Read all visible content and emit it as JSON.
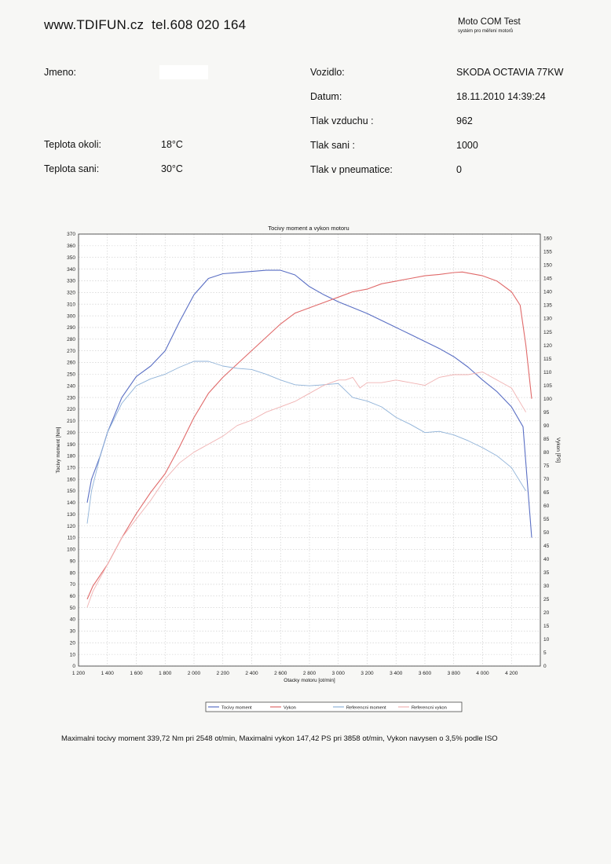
{
  "header": {
    "site": "www.TDIFUN.cz",
    "phone": "tel.608 020 164",
    "brand": "Moto COM Test",
    "brand_sub": "systém pro měření motorů"
  },
  "info": {
    "left": [
      {
        "label": "Jmeno:",
        "value": ""
      },
      {
        "label": "Teplota okoli:",
        "value": "18°C"
      },
      {
        "label": "Teplota sani:",
        "value": "30°C"
      }
    ],
    "right": [
      {
        "label": "Vozidlo:",
        "value": "SKODA OCTAVIA 77KW"
      },
      {
        "label": "Datum:",
        "value": "18.11.2010 14:39:24"
      },
      {
        "label": "Tlak vzduchu :",
        "value": "962"
      },
      {
        "label": "Tlak sani :",
        "value": "1000"
      },
      {
        "label": "Tlak v pneumatice:",
        "value": "0"
      }
    ]
  },
  "summary": "Maximalni tocivy moment 339,72 Nm pri 2548 ot/min,  Maximalni vykon 147,42 PS pri 3858 ot/min,  Vykon navysen o 3,5% podle ISO",
  "chart_data": {
    "type": "line",
    "title": "Tocivy moment a vykon motoru",
    "xlabel": "Otacky motoru [ot/min]",
    "ylabel": "Tocivy moment [Nm]",
    "y2label": "Vykon [PS]",
    "xlim": [
      1200,
      4400
    ],
    "ylim": [
      0,
      370
    ],
    "y2lim": [
      0,
      161.6
    ],
    "x_ticks": [
      1200,
      1400,
      1600,
      1800,
      2000,
      2200,
      2400,
      2600,
      2800,
      3000,
      3200,
      3400,
      3600,
      3800,
      4000,
      4200
    ],
    "x_tick_labels": [
      "1 200",
      "1 400",
      "1 600",
      "1 800",
      "2 000",
      "2 200",
      "2 400",
      "2 600",
      "2 800",
      "3 000",
      "3 200",
      "3 400",
      "3 600",
      "3 800",
      "4 000",
      "4 200"
    ],
    "y_ticks": [
      0,
      10,
      20,
      30,
      40,
      50,
      60,
      70,
      80,
      90,
      100,
      110,
      120,
      130,
      140,
      150,
      160,
      170,
      180,
      190,
      200,
      210,
      220,
      230,
      240,
      250,
      260,
      270,
      280,
      290,
      300,
      310,
      320,
      330,
      340,
      350,
      360,
      370
    ],
    "y2_ticks": [
      0,
      5,
      10,
      15,
      20,
      25,
      30,
      35,
      40,
      45,
      50,
      55,
      60,
      65,
      70,
      75,
      80,
      85,
      90,
      95,
      100,
      105,
      110,
      115,
      120,
      125,
      130,
      135,
      140,
      145,
      150,
      155,
      160
    ],
    "legend": [
      "Tocivy moment",
      "Vykon",
      "Referencni moment",
      "Referencni vykon"
    ],
    "series": [
      {
        "name": "Tocivy moment",
        "axis": "left",
        "color": "#5a6fc4",
        "x": [
          1260,
          1290,
          1350,
          1400,
          1500,
          1600,
          1700,
          1800,
          1900,
          2000,
          2100,
          2200,
          2300,
          2400,
          2500,
          2600,
          2700,
          2800,
          2900,
          3000,
          3100,
          3200,
          3300,
          3400,
          3500,
          3600,
          3700,
          3800,
          3900,
          4000,
          4100,
          4200,
          4280,
          4340
        ],
        "y": [
          140,
          160,
          180,
          200,
          230,
          248,
          257,
          270,
          295,
          318,
          332,
          336,
          337,
          338,
          339,
          339,
          335,
          325,
          318,
          312,
          307,
          302,
          296,
          290,
          284,
          278,
          272,
          265,
          256,
          245,
          235,
          222,
          205,
          110
        ]
      },
      {
        "name": "Vykon",
        "axis": "right",
        "color": "#e06a6a",
        "x": [
          1260,
          1300,
          1400,
          1500,
          1600,
          1700,
          1800,
          1900,
          2000,
          2100,
          2200,
          2300,
          2400,
          2500,
          2600,
          2700,
          2800,
          2900,
          3000,
          3100,
          3200,
          3300,
          3400,
          3500,
          3600,
          3700,
          3800,
          3860,
          3900,
          4000,
          4100,
          4200,
          4260,
          4300,
          4340
        ],
        "y": [
          25,
          30,
          38,
          48,
          57,
          65,
          72,
          82,
          93,
          102,
          108,
          113,
          118,
          123,
          128,
          132,
          134,
          136,
          138,
          140,
          141,
          143,
          144,
          145,
          146,
          146.5,
          147.2,
          147.4,
          147,
          146,
          144,
          140,
          135,
          120,
          100
        ]
      },
      {
        "name": "Referencni moment",
        "axis": "left",
        "color": "#8fb2d8",
        "x": [
          1260,
          1290,
          1350,
          1400,
          1500,
          1600,
          1700,
          1800,
          1900,
          2000,
          2100,
          2200,
          2300,
          2400,
          2500,
          2600,
          2700,
          2800,
          2900,
          3000,
          3100,
          3200,
          3300,
          3400,
          3500,
          3600,
          3700,
          3800,
          3900,
          4000,
          4100,
          4200,
          4300
        ],
        "y": [
          122,
          150,
          180,
          200,
          225,
          240,
          246,
          250,
          256,
          261,
          261,
          257,
          255,
          254,
          250,
          245,
          241,
          240,
          241,
          242,
          230,
          227,
          222,
          213,
          207,
          200,
          201,
          198,
          193,
          187,
          180,
          170,
          150
        ]
      },
      {
        "name": "Referencni vykon",
        "axis": "right",
        "color": "#f0b2b2",
        "x": [
          1260,
          1300,
          1400,
          1500,
          1600,
          1700,
          1800,
          1900,
          2000,
          2100,
          2200,
          2300,
          2400,
          2500,
          2600,
          2700,
          2800,
          2900,
          3000,
          3050,
          3100,
          3150,
          3200,
          3300,
          3400,
          3500,
          3600,
          3700,
          3800,
          3900,
          4000,
          4100,
          4200,
          4300
        ],
        "y": [
          22,
          28,
          38,
          48,
          55,
          62,
          70,
          76,
          80,
          83,
          86,
          90,
          92,
          95,
          97,
          99,
          102,
          105,
          107,
          107,
          108,
          104,
          106,
          106,
          107,
          106,
          105,
          108,
          109,
          109,
          110,
          107,
          104,
          95
        ]
      }
    ]
  }
}
